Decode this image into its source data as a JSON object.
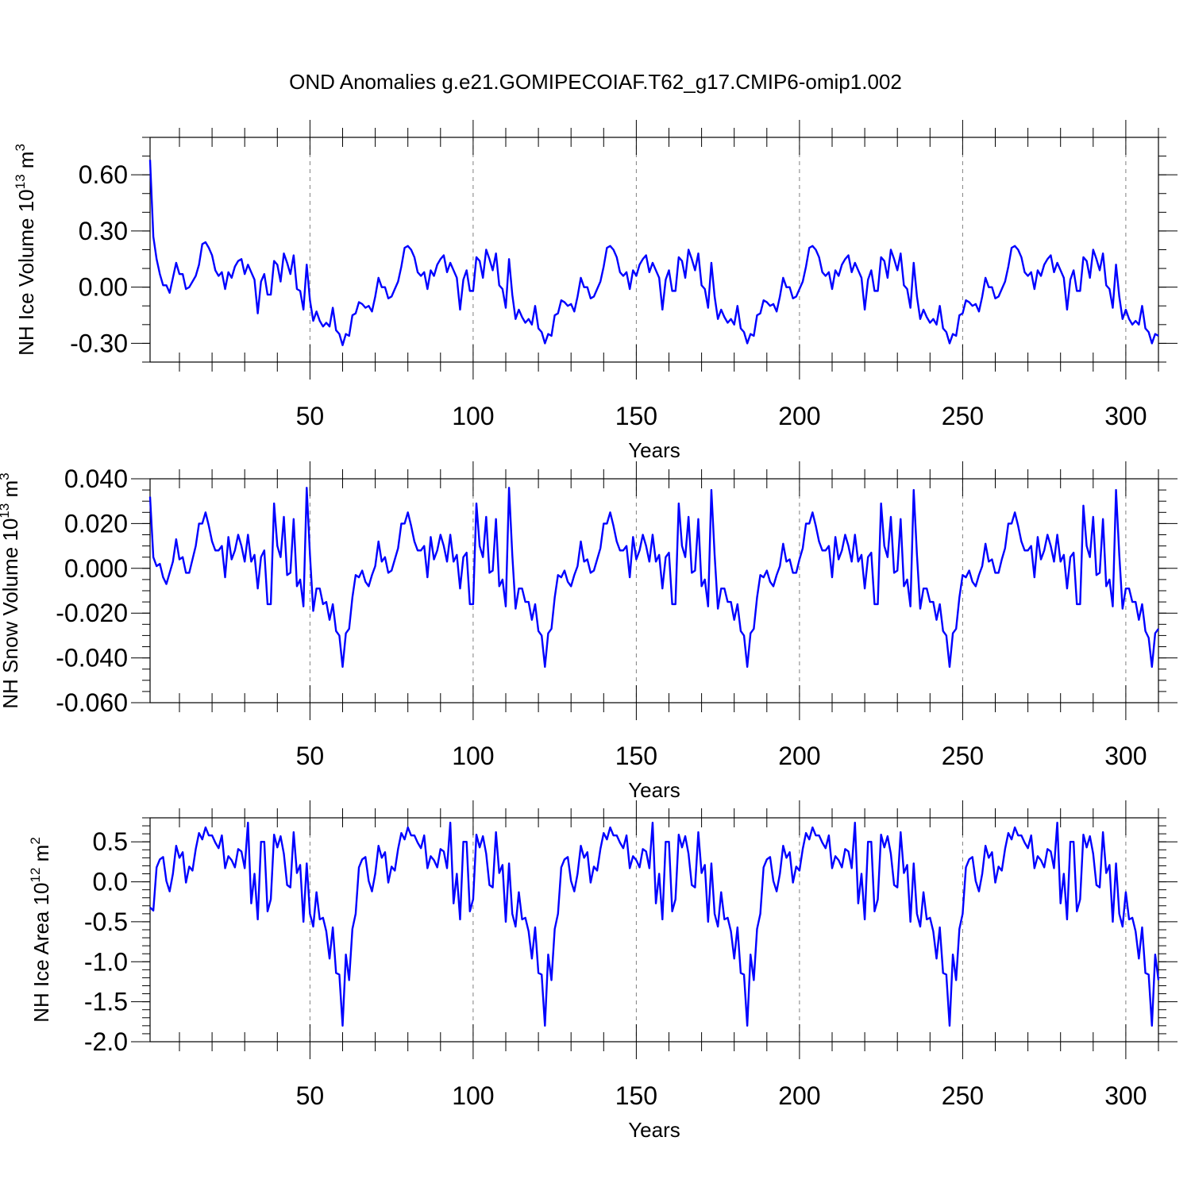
{
  "figure": {
    "title": "OND Anomalies g.e21.GOMIPECOIAF.T62_g17.CMIP6-omip1.002",
    "line_color": "#0000ff",
    "grid_color": "#808080",
    "panels_layout": "three stacked panels sharing a Years x-axis; vertical dashed grid lines at major x ticks"
  },
  "chart_data": [
    {
      "type": "line",
      "ylabel_main": "NH Ice Volume 10",
      "ylabel_exp": "13",
      "ylabel_unit": " m",
      "ylabel_unit_exp": "3",
      "xlabel": "Years",
      "xlim": [
        1,
        310
      ],
      "ylim": [
        -0.4,
        0.8
      ],
      "xticks": [
        50,
        100,
        150,
        200,
        250,
        300
      ],
      "xtick_labels": [
        "50",
        "100",
        "150",
        "200",
        "250",
        "300"
      ],
      "xtick_minor_step": 10,
      "yticks": [
        -0.3,
        0.0,
        0.3,
        0.6
      ],
      "ytick_labels": [
        "-0.30",
        "0.00",
        "0.30",
        "0.60"
      ],
      "ytick_minor_step": 0.1,
      "grid": "x-major dashed",
      "x_start": 1,
      "values": [
        0.68,
        0.27,
        0.15,
        0.07,
        0.01,
        0.01,
        -0.03,
        0.05,
        0.13,
        0.07,
        0.07,
        -0.01,
        0.0,
        0.03,
        0.06,
        0.12,
        0.23,
        0.24,
        0.21,
        0.17,
        0.09,
        0.06,
        0.08,
        -0.01,
        0.08,
        0.05,
        0.11,
        0.14,
        0.15,
        0.07,
        0.12,
        0.08,
        0.04,
        -0.14,
        0.03,
        0.07,
        -0.04,
        -0.04,
        0.14,
        0.12,
        0.03,
        0.18,
        0.13,
        0.07,
        0.17,
        -0.01,
        -0.02,
        -0.12,
        0.12,
        -0.07,
        -0.18,
        -0.13,
        -0.18,
        -0.21,
        -0.19,
        -0.21,
        -0.11,
        -0.23,
        -0.25,
        -0.31,
        -0.25,
        -0.26,
        -0.15,
        -0.14,
        -0.08,
        -0.09,
        -0.11,
        -0.1,
        -0.13,
        -0.05,
        0.05,
        0.0,
        0.0,
        -0.06,
        -0.05,
        -0.01,
        0.03,
        0.11,
        0.21,
        0.22,
        0.2,
        0.16,
        0.08,
        0.06,
        0.08,
        -0.01,
        0.09,
        0.06,
        0.12,
        0.15,
        0.17,
        0.08,
        0.13,
        0.09,
        0.05,
        -0.12,
        0.04,
        0.09,
        -0.02,
        -0.02,
        0.16,
        0.14,
        0.05,
        0.2,
        0.15,
        0.09,
        0.18,
        0.01,
        -0.01,
        -0.11,
        0.15,
        -0.04,
        -0.17,
        -0.12,
        -0.16,
        -0.19,
        -0.17,
        -0.2,
        -0.1,
        -0.22,
        -0.24,
        -0.3,
        -0.25,
        -0.26,
        -0.15,
        -0.14,
        -0.07,
        -0.08,
        -0.1,
        -0.09,
        -0.13,
        -0.05,
        0.05,
        0.0,
        0.0,
        -0.06,
        -0.05,
        -0.01,
        0.03,
        0.11,
        0.21,
        0.22,
        0.2,
        0.16,
        0.08,
        0.06,
        0.08,
        -0.01,
        0.09,
        0.06,
        0.12,
        0.15,
        0.17,
        0.08,
        0.13,
        0.09,
        0.05,
        -0.12,
        0.04,
        0.09,
        -0.02,
        -0.02,
        0.16,
        0.14,
        0.05,
        0.2,
        0.15,
        0.09,
        0.18,
        0.01,
        -0.01,
        -0.11,
        0.13,
        -0.05,
        -0.17,
        -0.12,
        -0.16,
        -0.19,
        -0.17,
        -0.2,
        -0.1,
        -0.22,
        -0.24,
        -0.3,
        -0.25,
        -0.26,
        -0.15,
        -0.14,
        -0.07,
        -0.08,
        -0.1,
        -0.09,
        -0.13,
        -0.05,
        0.05,
        0.0,
        0.0,
        -0.06,
        -0.05,
        -0.01,
        0.03,
        0.11,
        0.21,
        0.22,
        0.2,
        0.16,
        0.08,
        0.06,
        0.08,
        -0.01,
        0.09,
        0.06,
        0.12,
        0.15,
        0.17,
        0.08,
        0.13,
        0.09,
        0.05,
        -0.12,
        0.04,
        0.09,
        -0.02,
        -0.02,
        0.16,
        0.14,
        0.05,
        0.2,
        0.15,
        0.09,
        0.18,
        0.01,
        -0.01,
        -0.11,
        0.13,
        -0.05,
        -0.17,
        -0.12,
        -0.16,
        -0.19,
        -0.17,
        -0.2,
        -0.1,
        -0.22,
        -0.24,
        -0.3,
        -0.25,
        -0.26,
        -0.15,
        -0.14,
        -0.07,
        -0.08,
        -0.1,
        -0.09,
        -0.13,
        -0.05,
        0.05,
        0.0,
        0.0,
        -0.06,
        -0.05,
        -0.01,
        0.03,
        0.11,
        0.21,
        0.22,
        0.2,
        0.16,
        0.08,
        0.06,
        0.08,
        -0.01,
        0.09,
        0.06,
        0.12,
        0.15,
        0.17,
        0.08,
        0.13,
        0.09,
        0.05,
        -0.12,
        0.04,
        0.09,
        -0.02,
        -0.02,
        0.16,
        0.14,
        0.05,
        0.2,
        0.15,
        0.09,
        0.18,
        0.01,
        -0.01,
        -0.11,
        0.12,
        -0.05,
        -0.17,
        -0.12,
        -0.17,
        -0.2,
        -0.18,
        -0.2,
        -0.1,
        -0.22,
        -0.24,
        -0.3,
        -0.25,
        -0.26
      ]
    },
    {
      "type": "line",
      "ylabel_main": "NH Snow Volume 10",
      "ylabel_exp": "13",
      "ylabel_unit": " m",
      "ylabel_unit_exp": "3",
      "xlabel": "Years",
      "xlim": [
        1,
        310
      ],
      "ylim": [
        -0.06,
        0.04
      ],
      "xticks": [
        50,
        100,
        150,
        200,
        250,
        300
      ],
      "xtick_labels": [
        "50",
        "100",
        "150",
        "200",
        "250",
        "300"
      ],
      "xtick_minor_step": 10,
      "yticks": [
        -0.06,
        -0.04,
        -0.02,
        0.0,
        0.02,
        0.04
      ],
      "ytick_labels": [
        "-0.060",
        "-0.040",
        "-0.020",
        "0.000",
        "0.020",
        "0.040"
      ],
      "ytick_minor_step": 0.005,
      "grid": "x-major dashed",
      "x_start": 1,
      "values": [
        0.032,
        0.005,
        0.001,
        0.002,
        -0.004,
        -0.007,
        -0.002,
        0.003,
        0.013,
        0.004,
        0.005,
        -0.002,
        -0.002,
        0.004,
        0.01,
        0.02,
        0.02,
        0.025,
        0.019,
        0.012,
        0.008,
        0.008,
        0.01,
        -0.004,
        0.014,
        0.004,
        0.008,
        0.015,
        0.01,
        0.003,
        0.015,
        0.003,
        0.006,
        -0.009,
        0.005,
        0.008,
        -0.016,
        -0.016,
        0.029,
        0.01,
        0.005,
        0.023,
        -0.003,
        -0.002,
        0.022,
        -0.008,
        -0.005,
        -0.017,
        0.036,
        0.006,
        -0.019,
        -0.009,
        -0.009,
        -0.016,
        -0.015,
        -0.023,
        -0.016,
        -0.028,
        -0.03,
        -0.044,
        -0.029,
        -0.027,
        -0.013,
        -0.003,
        -0.004,
        -0.001,
        -0.006,
        -0.008,
        -0.003,
        0.001,
        0.012,
        0.003,
        0.005,
        -0.002,
        -0.001,
        0.004,
        0.009,
        0.02,
        0.02,
        0.025,
        0.019,
        0.012,
        0.008,
        0.008,
        0.01,
        -0.004,
        0.014,
        0.004,
        0.008,
        0.015,
        0.01,
        0.003,
        0.015,
        0.003,
        0.006,
        -0.009,
        0.005,
        0.007,
        -0.016,
        -0.016,
        0.029,
        0.01,
        0.005,
        0.023,
        -0.002,
        -0.001,
        0.022,
        -0.008,
        -0.005,
        -0.017,
        0.036,
        0.006,
        -0.018,
        -0.009,
        -0.009,
        -0.015,
        -0.015,
        -0.023,
        -0.016,
        -0.028,
        -0.03,
        -0.044,
        -0.029,
        -0.027,
        -0.013,
        -0.003,
        -0.004,
        -0.001,
        -0.006,
        -0.008,
        -0.003,
        0.001,
        0.012,
        0.003,
        0.004,
        -0.002,
        -0.001,
        0.004,
        0.009,
        0.02,
        0.02,
        0.025,
        0.019,
        0.012,
        0.008,
        0.008,
        0.01,
        -0.004,
        0.014,
        0.004,
        0.008,
        0.015,
        0.01,
        0.003,
        0.015,
        0.003,
        0.006,
        -0.009,
        0.005,
        0.007,
        -0.016,
        -0.016,
        0.029,
        0.01,
        0.005,
        0.023,
        -0.002,
        -0.001,
        0.022,
        -0.008,
        -0.005,
        -0.017,
        0.035,
        0.006,
        -0.018,
        -0.009,
        -0.009,
        -0.015,
        -0.015,
        -0.023,
        -0.016,
        -0.028,
        -0.03,
        -0.044,
        -0.029,
        -0.027,
        -0.013,
        -0.003,
        -0.004,
        -0.001,
        -0.006,
        -0.008,
        -0.003,
        0.001,
        0.011,
        0.003,
        0.004,
        -0.002,
        -0.002,
        0.004,
        0.009,
        0.02,
        0.02,
        0.025,
        0.019,
        0.012,
        0.008,
        0.008,
        0.01,
        -0.004,
        0.014,
        0.004,
        0.008,
        0.015,
        0.01,
        0.003,
        0.015,
        0.003,
        0.006,
        -0.009,
        0.005,
        0.007,
        -0.016,
        -0.016,
        0.029,
        0.01,
        0.005,
        0.023,
        -0.002,
        -0.001,
        0.022,
        -0.008,
        -0.005,
        -0.017,
        0.035,
        0.006,
        -0.018,
        -0.009,
        -0.009,
        -0.015,
        -0.015,
        -0.023,
        -0.016,
        -0.028,
        -0.03,
        -0.044,
        -0.029,
        -0.027,
        -0.013,
        -0.003,
        -0.004,
        -0.001,
        -0.006,
        -0.008,
        -0.003,
        0.001,
        0.011,
        0.003,
        0.004,
        -0.002,
        -0.002,
        0.004,
        0.009,
        0.02,
        0.02,
        0.025,
        0.019,
        0.012,
        0.008,
        0.008,
        0.01,
        -0.004,
        0.014,
        0.004,
        0.008,
        0.015,
        0.01,
        0.003,
        0.015,
        0.003,
        0.006,
        -0.009,
        0.005,
        0.007,
        -0.016,
        -0.016,
        0.028,
        0.01,
        0.005,
        0.023,
        -0.003,
        -0.002,
        0.022,
        -0.008,
        -0.005,
        -0.017,
        0.035,
        0.006,
        -0.018,
        -0.009,
        -0.009,
        -0.015,
        -0.015,
        -0.023,
        -0.016,
        -0.028,
        -0.031,
        -0.044,
        -0.029,
        -0.027
      ]
    },
    {
      "type": "line",
      "ylabel_main": "NH Ice Area 10",
      "ylabel_exp": "12",
      "ylabel_unit": " m",
      "ylabel_unit_exp": "2",
      "xlabel": "Years",
      "xlim": [
        1,
        310
      ],
      "ylim": [
        -2.0,
        0.8
      ],
      "xticks": [
        50,
        100,
        150,
        200,
        250,
        300
      ],
      "xtick_labels": [
        "50",
        "100",
        "150",
        "200",
        "250",
        "300"
      ],
      "xtick_minor_step": 10,
      "yticks": [
        -2.0,
        -1.5,
        -1.0,
        -0.5,
        0.0,
        0.5
      ],
      "ytick_labels": [
        "-2.0",
        "-1.5",
        "-1.0",
        "-0.5",
        "0.0",
        "0.5"
      ],
      "ytick_minor_step": 0.1,
      "grid": "x-major dashed",
      "x_start": 1,
      "values": [
        -0.32,
        -0.36,
        0.18,
        0.28,
        0.31,
        0.01,
        -0.12,
        0.1,
        0.45,
        0.3,
        0.37,
        -0.01,
        0.19,
        0.14,
        0.41,
        0.61,
        0.53,
        0.68,
        0.58,
        0.58,
        0.49,
        0.42,
        0.58,
        0.17,
        0.32,
        0.27,
        0.18,
        0.41,
        0.38,
        0.17,
        0.74,
        -0.27,
        0.1,
        -0.47,
        0.5,
        0.5,
        -0.37,
        -0.22,
        0.59,
        0.43,
        0.57,
        0.35,
        -0.04,
        -0.07,
        0.62,
        0.11,
        0.21,
        -0.5,
        0.23,
        -0.4,
        -0.56,
        -0.13,
        -0.47,
        -0.45,
        -0.62,
        -0.96,
        -0.57,
        -1.14,
        -1.16,
        -1.8,
        -0.91,
        -1.23,
        -0.59,
        -0.4,
        0.18,
        0.28,
        0.31,
        0.01,
        -0.12,
        0.1,
        0.45,
        0.3,
        0.37,
        -0.01,
        0.19,
        0.14,
        0.41,
        0.61,
        0.53,
        0.68,
        0.58,
        0.58,
        0.49,
        0.42,
        0.58,
        0.17,
        0.32,
        0.27,
        0.18,
        0.41,
        0.38,
        0.17,
        0.74,
        -0.27,
        0.1,
        -0.47,
        0.5,
        0.5,
        -0.37,
        -0.22,
        0.59,
        0.43,
        0.57,
        0.35,
        -0.04,
        -0.07,
        0.62,
        0.11,
        0.21,
        -0.5,
        0.23,
        -0.4,
        -0.56,
        -0.13,
        -0.47,
        -0.45,
        -0.62,
        -0.96,
        -0.57,
        -1.14,
        -1.16,
        -1.8,
        -0.91,
        -1.23,
        -0.59,
        -0.4,
        0.18,
        0.28,
        0.31,
        0.01,
        -0.12,
        0.1,
        0.45,
        0.3,
        0.37,
        -0.01,
        0.19,
        0.14,
        0.41,
        0.61,
        0.53,
        0.68,
        0.58,
        0.58,
        0.49,
        0.42,
        0.58,
        0.17,
        0.32,
        0.27,
        0.18,
        0.41,
        0.38,
        0.17,
        0.74,
        -0.27,
        0.1,
        -0.47,
        0.5,
        0.5,
        -0.37,
        -0.22,
        0.59,
        0.43,
        0.57,
        0.35,
        -0.04,
        -0.07,
        0.62,
        0.11,
        0.21,
        -0.5,
        0.23,
        -0.4,
        -0.56,
        -0.13,
        -0.47,
        -0.45,
        -0.62,
        -0.96,
        -0.57,
        -1.14,
        -1.16,
        -1.8,
        -0.91,
        -1.23,
        -0.59,
        -0.4,
        0.18,
        0.28,
        0.31,
        0.01,
        -0.12,
        0.1,
        0.45,
        0.3,
        0.37,
        -0.01,
        0.19,
        0.14,
        0.41,
        0.61,
        0.53,
        0.68,
        0.58,
        0.58,
        0.49,
        0.42,
        0.58,
        0.17,
        0.32,
        0.27,
        0.18,
        0.41,
        0.38,
        0.17,
        0.74,
        -0.27,
        0.1,
        -0.47,
        0.5,
        0.5,
        -0.37,
        -0.22,
        0.59,
        0.43,
        0.57,
        0.35,
        -0.04,
        -0.07,
        0.62,
        0.11,
        0.21,
        -0.5,
        0.23,
        -0.4,
        -0.56,
        -0.13,
        -0.47,
        -0.45,
        -0.62,
        -0.96,
        -0.57,
        -1.14,
        -1.16,
        -1.8,
        -0.91,
        -1.23,
        -0.59,
        -0.4,
        0.18,
        0.28,
        0.31,
        0.01,
        -0.12,
        0.1,
        0.45,
        0.3,
        0.37,
        -0.01,
        0.19,
        0.14,
        0.41,
        0.61,
        0.53,
        0.68,
        0.58,
        0.58,
        0.49,
        0.42,
        0.58,
        0.17,
        0.32,
        0.27,
        0.18,
        0.41,
        0.38,
        0.17,
        0.74,
        -0.27,
        0.1,
        -0.47,
        0.5,
        0.5,
        -0.37,
        -0.22,
        0.59,
        0.43,
        0.57,
        0.35,
        -0.04,
        -0.07,
        0.62,
        0.11,
        0.21,
        -0.5,
        0.23,
        -0.4,
        -0.56,
        -0.13,
        -0.47,
        -0.45,
        -0.62,
        -0.96,
        -0.57,
        -1.14,
        -1.16,
        -1.8,
        -0.91,
        -1.23
      ]
    }
  ]
}
